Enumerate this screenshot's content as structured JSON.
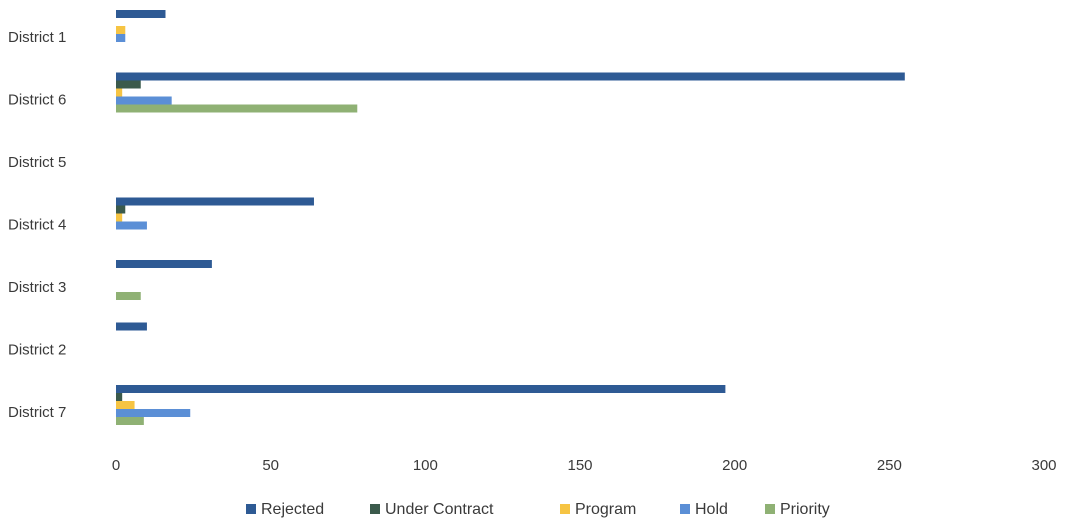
{
  "chart_data": {
    "type": "bar",
    "orientation": "horizontal",
    "categories": [
      "District 1",
      "District 6",
      "District 5",
      "District 4",
      "District 3",
      "District 2",
      "District 7"
    ],
    "series": [
      {
        "name": "Rejected",
        "color": "#2e5a94",
        "values": [
          16,
          255,
          0,
          64,
          31,
          10,
          197
        ]
      },
      {
        "name": "Under Contract",
        "color": "#3b5a4c",
        "values": [
          0,
          8,
          0,
          3,
          0,
          0,
          2
        ]
      },
      {
        "name": "Program",
        "color": "#f6c443",
        "values": [
          3,
          2,
          0,
          2,
          0,
          0,
          6
        ]
      },
      {
        "name": "Hold",
        "color": "#5b8fd6",
        "values": [
          3,
          18,
          0,
          10,
          0,
          0,
          24
        ]
      },
      {
        "name": "Priority",
        "color": "#8fb174",
        "values": [
          0,
          78,
          0,
          0,
          8,
          0,
          9
        ]
      }
    ],
    "xlim": [
      0,
      300
    ],
    "xticks": [
      0,
      50,
      100,
      150,
      200,
      250,
      300
    ],
    "xtick_labels": [
      "0",
      "50",
      "100",
      "150",
      "200",
      "250",
      "300"
    ],
    "legend_position": "bottom",
    "grid": false,
    "title": "",
    "xlabel": "",
    "ylabel": ""
  }
}
